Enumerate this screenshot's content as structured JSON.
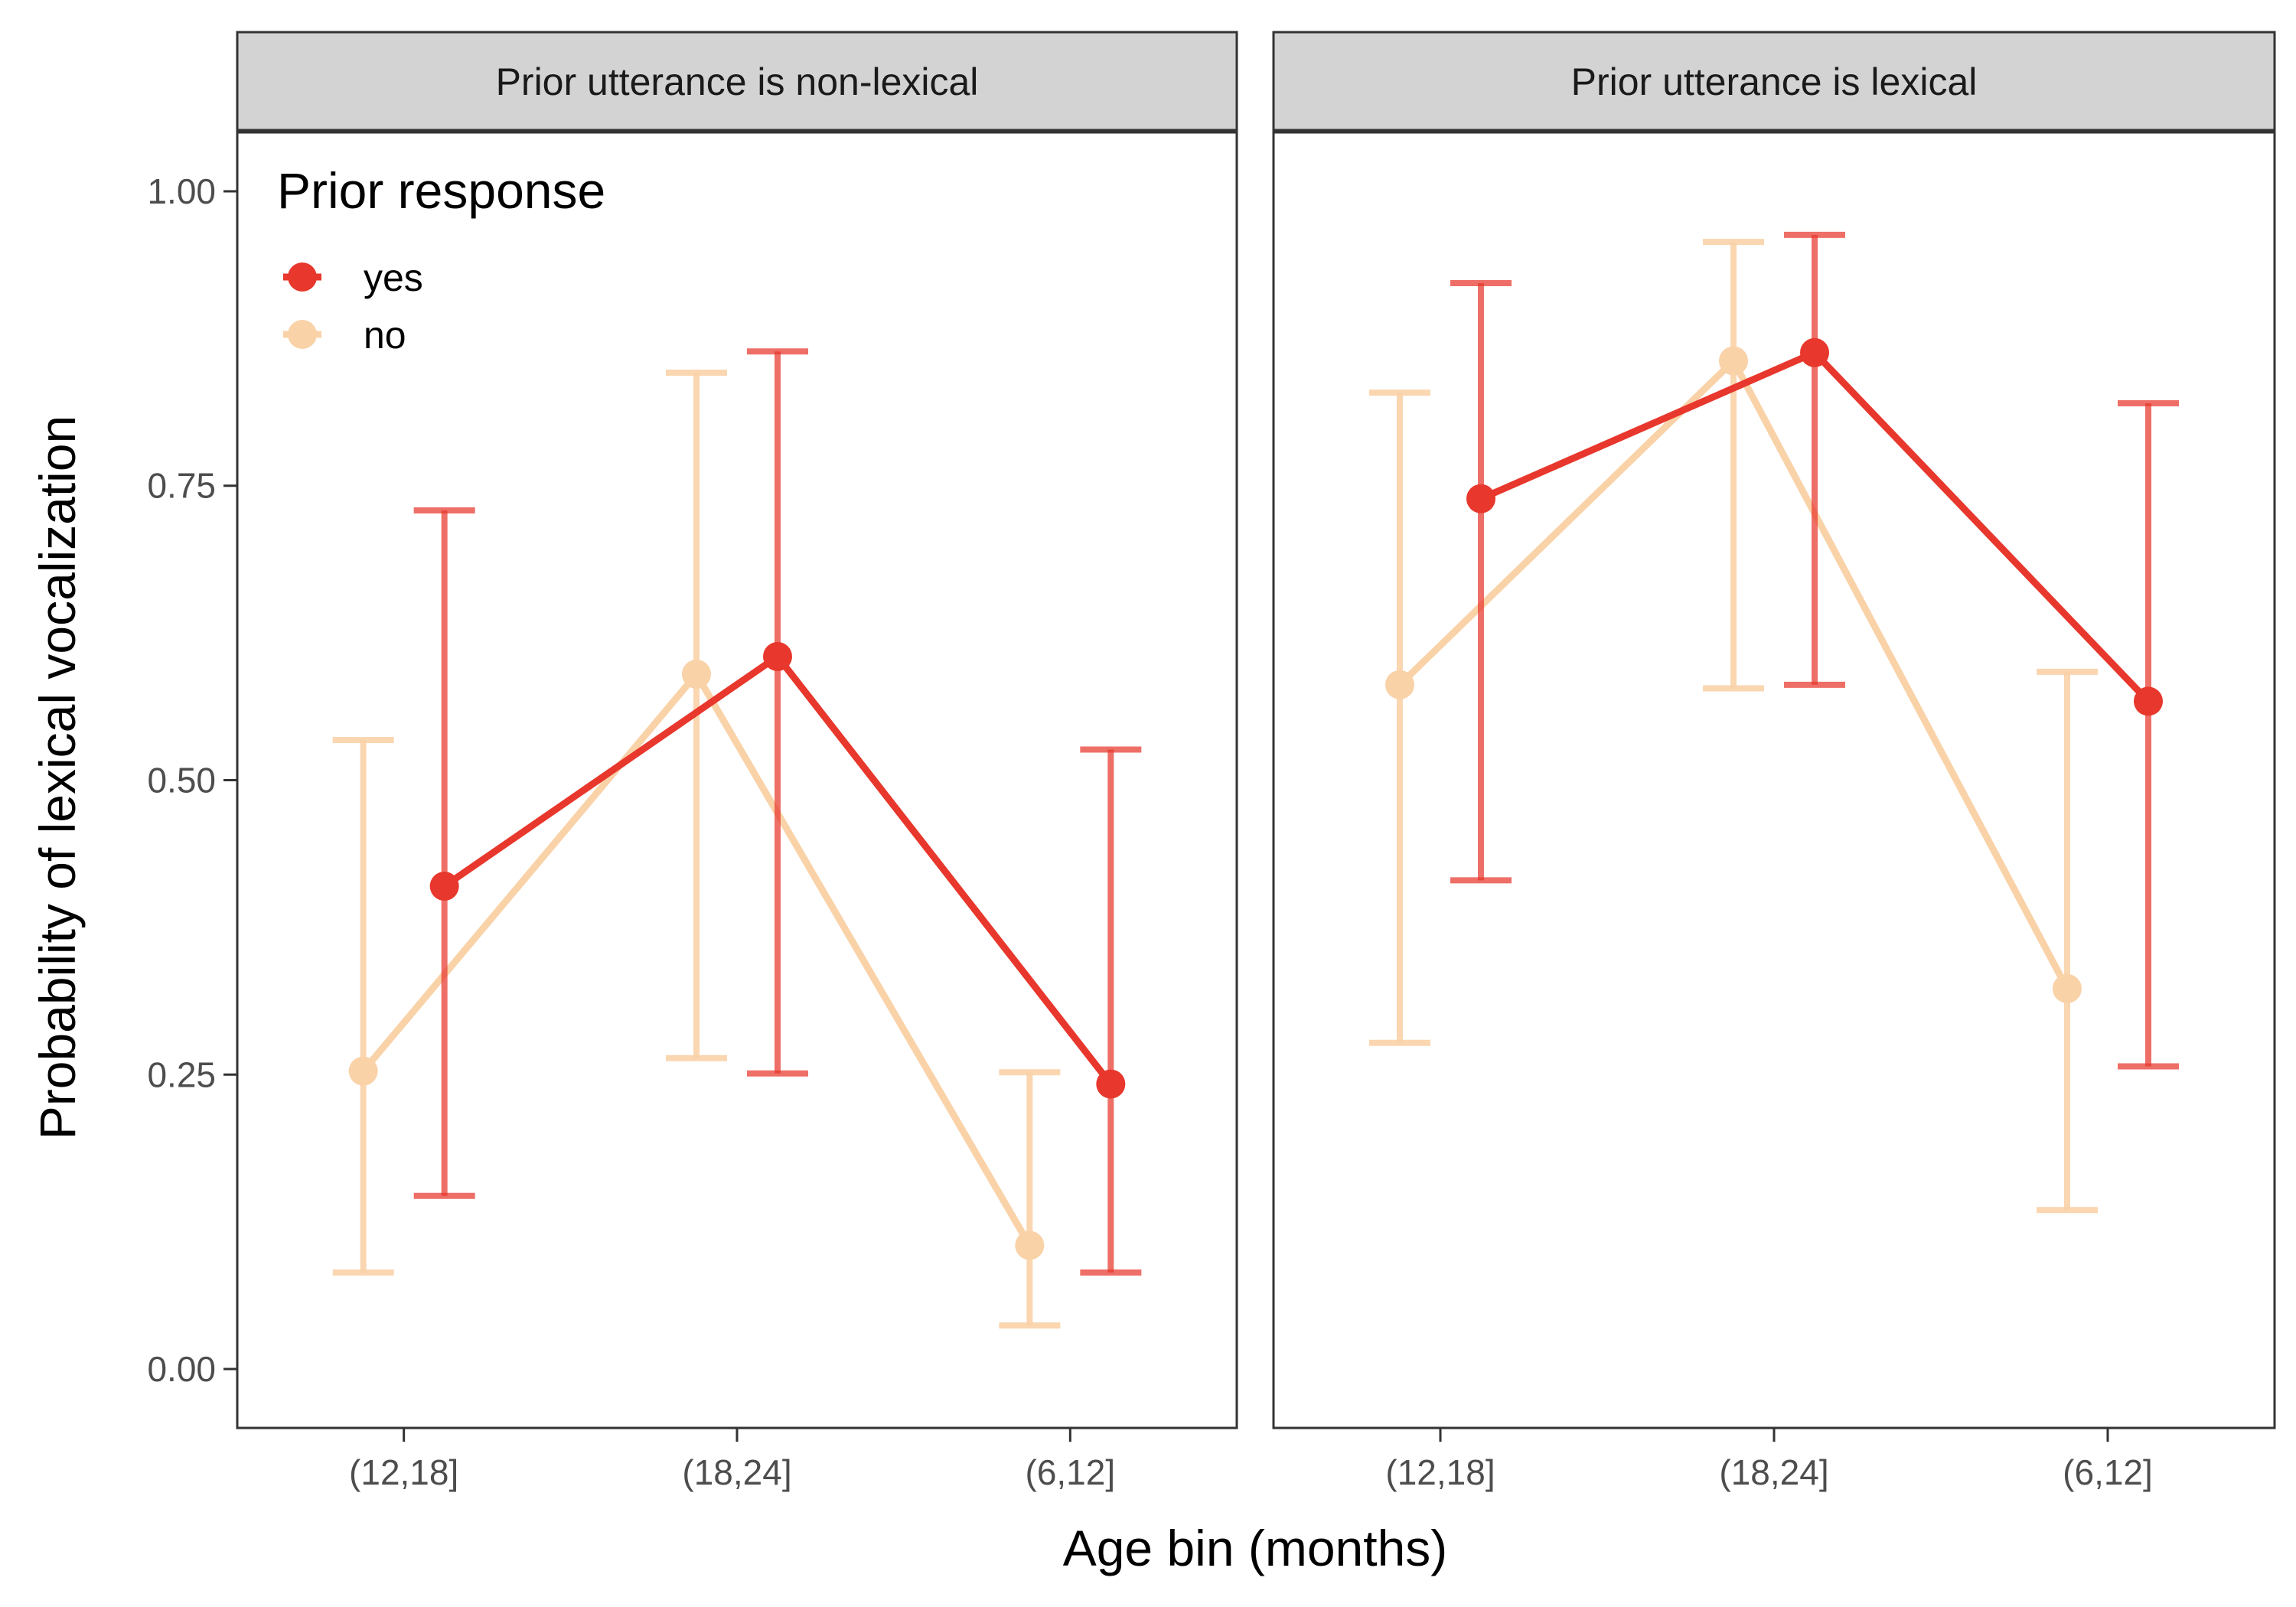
{
  "chart_data": {
    "type": "line",
    "xlabel": "Age bin (months)",
    "ylabel": "Probability of lexical vocalization",
    "categories": [
      "(12,18]",
      "(18,24]",
      "(6,12]"
    ],
    "yticks": [
      "0.00",
      "0.25",
      "0.50",
      "0.75",
      "1.00"
    ],
    "ylim": [
      -0.05,
      1.05
    ],
    "grid": false,
    "legend": {
      "title": "Prior response",
      "placement": "top-left inside first panel",
      "entries": [
        "yes",
        "no"
      ]
    },
    "series_colors": {
      "yes": "#e8372c",
      "no": "#f9d2a8"
    },
    "panels": [
      {
        "title": "Prior utterance is non-lexical",
        "series": [
          {
            "name": "yes",
            "values": [
              0.41,
              0.605,
              0.242
            ],
            "lower": [
              0.147,
              0.251,
              0.082
            ],
            "upper": [
              0.729,
              0.864,
              0.526
            ]
          },
          {
            "name": "no",
            "values": [
              0.253,
              0.59,
              0.105
            ],
            "lower": [
              0.082,
              0.264,
              0.037
            ],
            "upper": [
              0.534,
              0.846,
              0.252
            ]
          }
        ]
      },
      {
        "title": "Prior utterance is lexical",
        "series": [
          {
            "name": "yes",
            "values": [
              0.739,
              0.863,
              0.567
            ],
            "lower": [
              0.415,
              0.581,
              0.257
            ],
            "upper": [
              0.922,
              0.963,
              0.82
            ]
          },
          {
            "name": "no",
            "values": [
              0.581,
              0.856,
              0.323
            ],
            "lower": [
              0.277,
              0.578,
              0.135
            ],
            "upper": [
              0.829,
              0.957,
              0.592
            ]
          }
        ]
      }
    ]
  }
}
